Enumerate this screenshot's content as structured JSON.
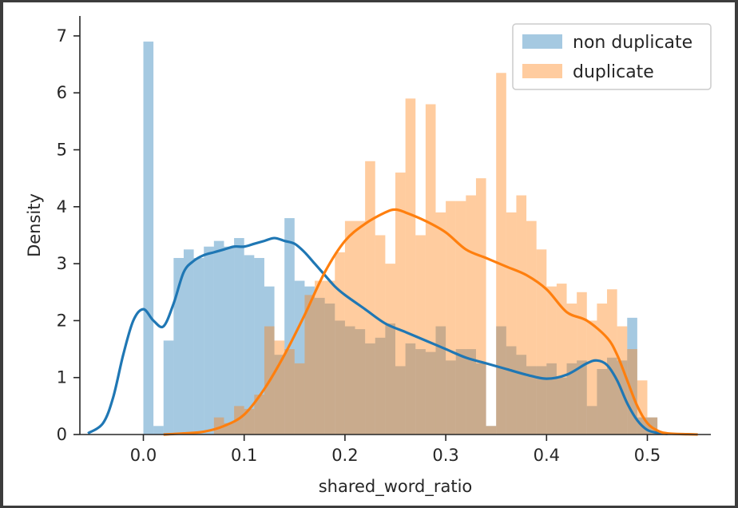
{
  "chart_data": {
    "type": "histogram",
    "xlabel": "shared_word_ratio",
    "ylabel": "Density",
    "xlim": [
      -0.063,
      0.563
    ],
    "ylim": [
      0,
      7.35
    ],
    "xticks": [
      "0.0",
      "0.1",
      "0.2",
      "0.3",
      "0.4",
      "0.5"
    ],
    "xtick_values": [
      0.0,
      0.1,
      0.2,
      0.3,
      0.4,
      0.5
    ],
    "yticks": [
      "0",
      "1",
      "2",
      "3",
      "4",
      "5",
      "6",
      "7"
    ],
    "ytick_values": [
      0,
      1,
      2,
      3,
      4,
      5,
      6,
      7
    ],
    "legend_position": "top-right",
    "series": [
      {
        "name": "non duplicate",
        "color": "#1f77b4",
        "bar_alpha": 0.4,
        "bin_start": 0.0,
        "bin_width": 0.01,
        "densities": [
          6.9,
          0.15,
          1.65,
          3.1,
          3.25,
          3.1,
          3.3,
          3.4,
          3.3,
          3.45,
          3.15,
          3.1,
          2.6,
          1.4,
          3.8,
          2.7,
          2.6,
          2.4,
          2.3,
          2.0,
          1.9,
          1.85,
          1.6,
          1.7,
          1.95,
          1.2,
          1.6,
          1.5,
          1.45,
          1.9,
          1.3,
          1.5,
          1.5,
          1.25,
          0.15,
          1.9,
          1.55,
          1.4,
          1.2,
          1.2,
          1.25,
          1.0,
          1.25,
          1.3,
          0.5,
          1.15,
          1.35,
          1.3,
          2.05,
          0.3,
          0.3
        ],
        "kde": {
          "x": [
            -0.055,
            -0.04,
            -0.03,
            -0.02,
            -0.01,
            0.0,
            0.01,
            0.02,
            0.03,
            0.04,
            0.05,
            0.06,
            0.07,
            0.08,
            0.09,
            0.1,
            0.11,
            0.12,
            0.13,
            0.14,
            0.15,
            0.16,
            0.17,
            0.18,
            0.19,
            0.2,
            0.22,
            0.24,
            0.26,
            0.28,
            0.3,
            0.32,
            0.34,
            0.36,
            0.38,
            0.4,
            0.42,
            0.44,
            0.45,
            0.46,
            0.47,
            0.48,
            0.49,
            0.5,
            0.51,
            0.52
          ],
          "y": [
            0.02,
            0.2,
            0.65,
            1.4,
            2.0,
            2.2,
            2.0,
            1.9,
            2.3,
            2.85,
            3.05,
            3.15,
            3.2,
            3.25,
            3.3,
            3.3,
            3.35,
            3.4,
            3.45,
            3.4,
            3.35,
            3.2,
            3.0,
            2.8,
            2.6,
            2.45,
            2.2,
            1.95,
            1.8,
            1.65,
            1.5,
            1.35,
            1.25,
            1.15,
            1.05,
            0.98,
            1.05,
            1.25,
            1.3,
            1.22,
            0.95,
            0.55,
            0.25,
            0.08,
            0.03,
            0.01
          ]
        }
      },
      {
        "name": "duplicate",
        "color": "#ff7f0e",
        "bar_alpha": 0.4,
        "bin_start": 0.0,
        "bin_width": 0.01,
        "densities": [
          0,
          0,
          0,
          0,
          0,
          0,
          0,
          0.3,
          0.2,
          0.5,
          0.45,
          0.7,
          1.9,
          1.65,
          1.5,
          1.25,
          2.45,
          2.7,
          2.7,
          3.2,
          3.75,
          3.75,
          4.8,
          3.5,
          3.0,
          4.6,
          5.9,
          3.5,
          5.8,
          3.9,
          4.1,
          4.1,
          4.2,
          4.5,
          0.15,
          6.35,
          3.9,
          4.2,
          3.75,
          3.25,
          2.6,
          2.65,
          2.3,
          2.5,
          2.0,
          2.3,
          2.55,
          1.9,
          1.5,
          0.95,
          0.3
        ],
        "kde": {
          "x": [
            0.02,
            0.04,
            0.06,
            0.08,
            0.1,
            0.12,
            0.14,
            0.16,
            0.18,
            0.2,
            0.22,
            0.24,
            0.25,
            0.26,
            0.28,
            0.3,
            0.32,
            0.34,
            0.36,
            0.38,
            0.4,
            0.42,
            0.44,
            0.46,
            0.47,
            0.48,
            0.49,
            0.5,
            0.51,
            0.52,
            0.54,
            0.55
          ],
          "y": [
            0.0,
            0.02,
            0.05,
            0.15,
            0.35,
            0.8,
            1.4,
            2.1,
            2.85,
            3.4,
            3.7,
            3.9,
            3.95,
            3.9,
            3.75,
            3.55,
            3.25,
            3.1,
            2.95,
            2.8,
            2.55,
            2.15,
            2.0,
            1.7,
            1.4,
            0.95,
            0.5,
            0.2,
            0.07,
            0.02,
            0.005,
            0.0
          ]
        }
      }
    ]
  }
}
